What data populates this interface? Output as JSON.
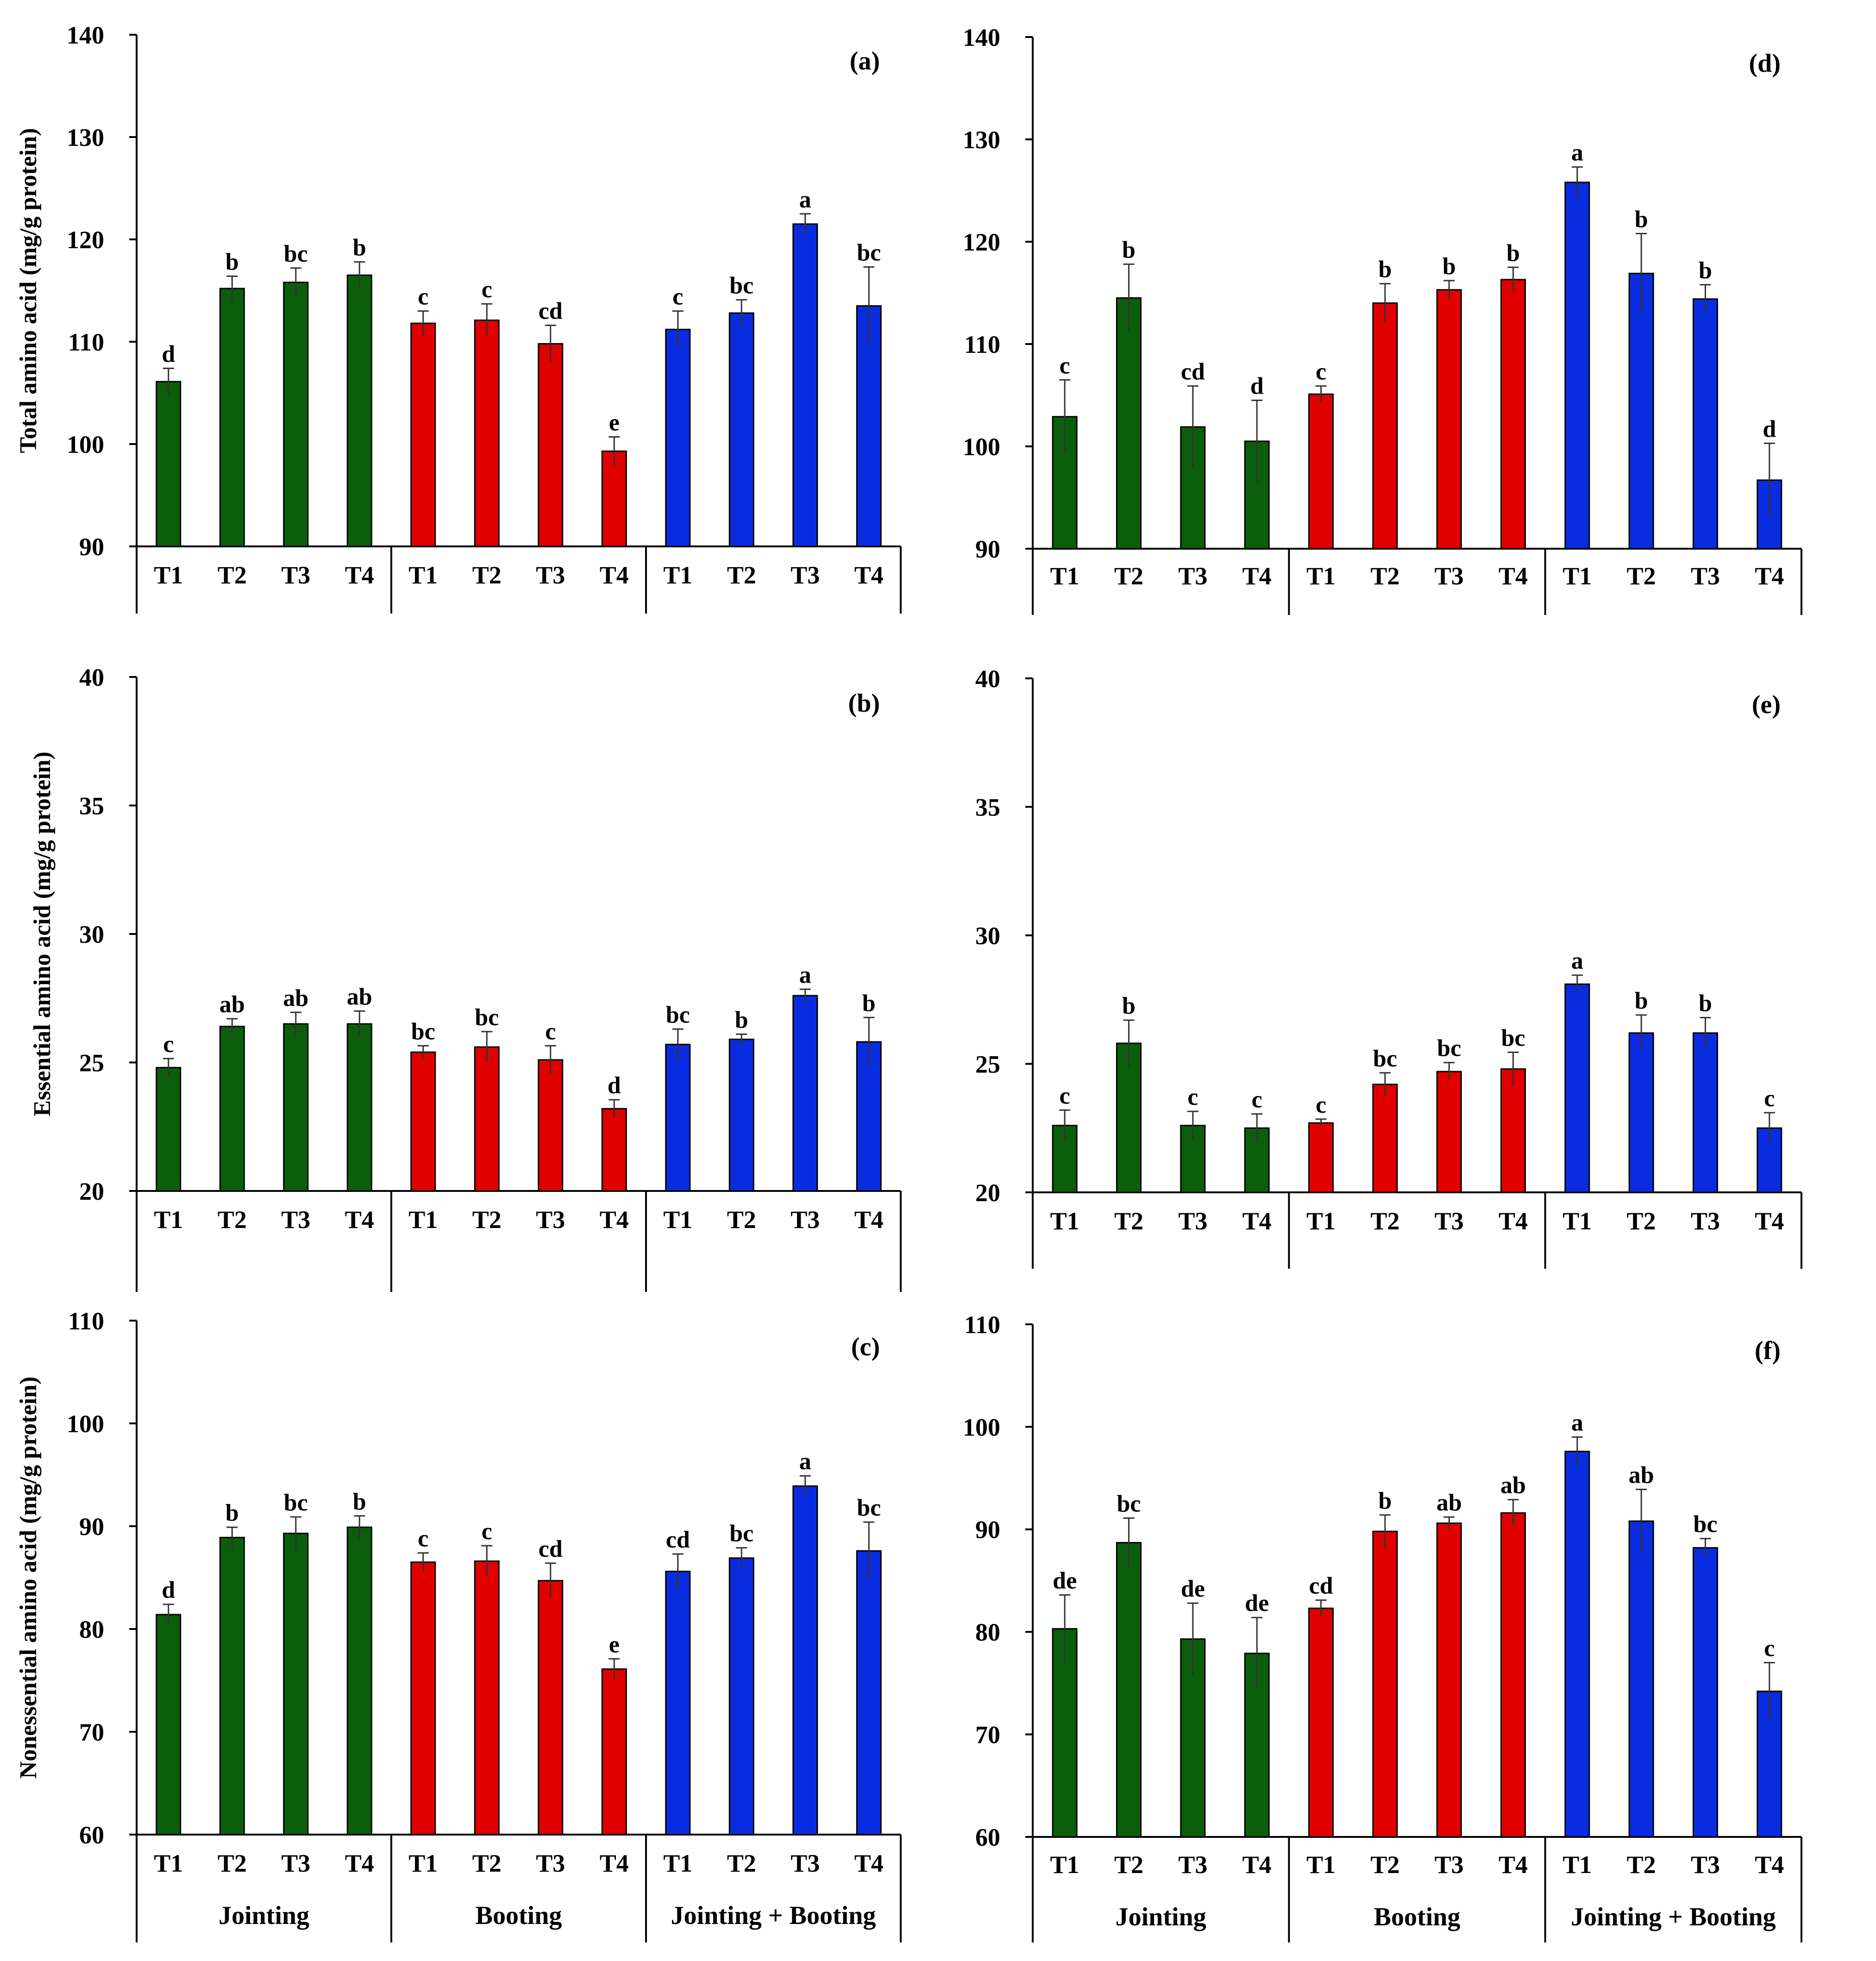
{
  "figure": {
    "treatments": [
      "T1",
      "T2",
      "T3",
      "T4"
    ],
    "stages": [
      "Jointing",
      "Booting",
      "Jointing + Booting"
    ],
    "colors": {
      "Jointing": "#0b5e0b",
      "Booting": "#e00000",
      "Jointing + Booting": "#0a2ce0"
    }
  },
  "chart_data": [
    {
      "panel": "(a)",
      "type": "bar",
      "ylabel": "Total amino acid (mg/g protein)",
      "ylim": [
        90,
        140
      ],
      "yticks": [
        90,
        100,
        110,
        120,
        130,
        140
      ],
      "categories": [
        "T1",
        "T2",
        "T3",
        "T4",
        "T1",
        "T2",
        "T3",
        "T4",
        "T1",
        "T2",
        "T3",
        "T4"
      ],
      "groups": [
        "Jointing",
        "Booting",
        "Jointing + Booting"
      ],
      "values": [
        106.1,
        115.2,
        115.8,
        116.5,
        111.8,
        112.1,
        109.8,
        99.3,
        111.2,
        112.8,
        121.5,
        113.5
      ],
      "errors": [
        1.3,
        1.2,
        1.4,
        1.3,
        1.2,
        1.6,
        1.8,
        1.4,
        1.8,
        1.3,
        1.0,
        3.8
      ],
      "letters": [
        "d",
        "b",
        "bc",
        "b",
        "c",
        "c",
        "cd",
        "e",
        "c",
        "bc",
        "a",
        "bc"
      ]
    },
    {
      "panel": "(b)",
      "type": "bar",
      "ylabel": "Essential amino acid (mg/g protein)",
      "ylim": [
        20,
        40
      ],
      "yticks": [
        20,
        25,
        30,
        35,
        40
      ],
      "categories": [
        "T1",
        "T2",
        "T3",
        "T4",
        "T1",
        "T2",
        "T3",
        "T4",
        "T1",
        "T2",
        "T3",
        "T4"
      ],
      "groups": [
        "Jointing",
        "Booting",
        "Jointing + Booting"
      ],
      "values": [
        24.8,
        26.4,
        26.5,
        26.5,
        25.4,
        25.6,
        25.1,
        23.2,
        25.7,
        25.9,
        27.6,
        25.8
      ],
      "errors": [
        0.35,
        0.3,
        0.45,
        0.5,
        0.25,
        0.6,
        0.55,
        0.35,
        0.6,
        0.2,
        0.25,
        0.95
      ],
      "letters": [
        "c",
        "ab",
        "ab",
        "ab",
        "bc",
        "bc",
        "c",
        "d",
        "bc",
        "b",
        "a",
        "b"
      ]
    },
    {
      "panel": "(c)",
      "type": "bar",
      "ylabel": "Nonessential amino acid (mg/g protein)",
      "ylim": [
        60,
        110
      ],
      "yticks": [
        60,
        70,
        80,
        90,
        100,
        110
      ],
      "categories": [
        "T1",
        "T2",
        "T3",
        "T4",
        "T1",
        "T2",
        "T3",
        "T4",
        "T1",
        "T2",
        "T3",
        "T4"
      ],
      "groups": [
        "Jointing",
        "Booting",
        "Jointing + Booting"
      ],
      "values": [
        81.4,
        88.9,
        89.3,
        89.9,
        86.5,
        86.6,
        84.7,
        76.1,
        85.6,
        86.9,
        93.9,
        87.6
      ],
      "errors": [
        1.0,
        1.0,
        1.6,
        1.1,
        0.9,
        1.5,
        1.7,
        1.0,
        1.7,
        1.0,
        1.0,
        2.8
      ],
      "letters": [
        "d",
        "b",
        "bc",
        "b",
        "c",
        "c",
        "cd",
        "e",
        "cd",
        "bc",
        "a",
        "bc"
      ]
    },
    {
      "panel": "(d)",
      "type": "bar",
      "ylabel": "",
      "ylim": [
        90,
        140
      ],
      "yticks": [
        90,
        100,
        110,
        120,
        130,
        140
      ],
      "categories": [
        "T1",
        "T2",
        "T3",
        "T4",
        "T1",
        "T2",
        "T3",
        "T4",
        "T1",
        "T2",
        "T3",
        "T4"
      ],
      "groups": [
        "Jointing",
        "Booting",
        "Jointing + Booting"
      ],
      "values": [
        102.9,
        114.5,
        101.9,
        100.5,
        105.1,
        114.0,
        115.3,
        116.3,
        125.8,
        116.9,
        114.4,
        96.7
      ],
      "errors": [
        3.6,
        3.3,
        4.0,
        4.0,
        0.8,
        1.9,
        0.9,
        1.2,
        1.5,
        3.9,
        1.4,
        3.6
      ],
      "letters": [
        "c",
        "b",
        "cd",
        "d",
        "c",
        "b",
        "b",
        "b",
        "a",
        "b",
        "b",
        "d"
      ]
    },
    {
      "panel": "(e)",
      "type": "bar",
      "ylabel": "",
      "ylim": [
        20,
        40
      ],
      "yticks": [
        20,
        25,
        30,
        35,
        40
      ],
      "categories": [
        "T1",
        "T2",
        "T3",
        "T4",
        "T1",
        "T2",
        "T3",
        "T4",
        "T1",
        "T2",
        "T3",
        "T4"
      ],
      "groups": [
        "Jointing",
        "Booting",
        "Jointing + Booting"
      ],
      "values": [
        22.6,
        25.8,
        22.6,
        22.5,
        22.7,
        24.2,
        24.7,
        24.8,
        28.1,
        26.2,
        26.2,
        22.5
      ],
      "errors": [
        0.6,
        0.9,
        0.55,
        0.55,
        0.15,
        0.45,
        0.35,
        0.65,
        0.35,
        0.7,
        0.6,
        0.6
      ],
      "letters": [
        "c",
        "b",
        "c",
        "c",
        "c",
        "bc",
        "bc",
        "bc",
        "a",
        "b",
        "b",
        "c"
      ]
    },
    {
      "panel": "(f)",
      "type": "bar",
      "ylabel": "",
      "ylim": [
        60,
        110
      ],
      "yticks": [
        60,
        70,
        80,
        90,
        100,
        110
      ],
      "categories": [
        "T1",
        "T2",
        "T3",
        "T4",
        "T1",
        "T2",
        "T3",
        "T4",
        "T1",
        "T2",
        "T3",
        "T4"
      ],
      "groups": [
        "Jointing",
        "Booting",
        "Jointing + Booting"
      ],
      "values": [
        80.3,
        88.7,
        79.3,
        77.9,
        82.3,
        89.8,
        90.6,
        91.6,
        97.6,
        90.8,
        88.2,
        74.2
      ],
      "errors": [
        3.3,
        2.4,
        3.5,
        3.5,
        0.8,
        1.6,
        0.6,
        1.3,
        1.4,
        3.1,
        0.9,
        2.8
      ],
      "letters": [
        "de",
        "bc",
        "de",
        "de",
        "cd",
        "b",
        "ab",
        "ab",
        "a",
        "ab",
        "bc",
        "c"
      ]
    }
  ]
}
